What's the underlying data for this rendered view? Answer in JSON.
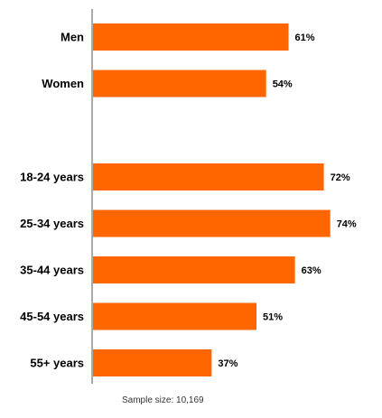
{
  "chart_data": {
    "type": "bar",
    "orientation": "horizontal",
    "categories": [
      "Men",
      "Women",
      "18-24 years",
      "25-34 years",
      "35-44 years",
      "45-54 years",
      "55+ years"
    ],
    "values": [
      61,
      54,
      72,
      74,
      63,
      51,
      37
    ],
    "value_labels": [
      "61%",
      "54%",
      "72%",
      "74%",
      "63%",
      "51%",
      "37%"
    ],
    "unit": "%",
    "groups": [
      [
        "Men",
        "Women"
      ],
      [
        "18-24 years",
        "25-34 years",
        "35-44 years",
        "45-54 years",
        "55+ years"
      ]
    ],
    "title": "",
    "xlabel": "",
    "ylabel": "",
    "xlim": [
      0,
      100
    ],
    "grid": false,
    "legend": "none",
    "bar_color": "#ff6600"
  },
  "footnote": "Sample size: 10,169"
}
